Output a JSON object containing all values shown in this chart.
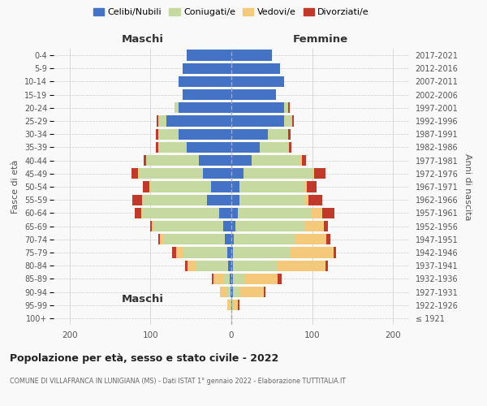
{
  "age_groups": [
    "100+",
    "95-99",
    "90-94",
    "85-89",
    "80-84",
    "75-79",
    "70-74",
    "65-69",
    "60-64",
    "55-59",
    "50-54",
    "45-49",
    "40-44",
    "35-39",
    "30-34",
    "25-29",
    "20-24",
    "15-19",
    "10-14",
    "5-9",
    "0-4"
  ],
  "birth_years": [
    "≤ 1921",
    "1922-1926",
    "1927-1931",
    "1932-1936",
    "1937-1941",
    "1942-1946",
    "1947-1951",
    "1952-1956",
    "1957-1961",
    "1962-1966",
    "1967-1971",
    "1972-1976",
    "1977-1981",
    "1982-1986",
    "1987-1991",
    "1992-1996",
    "1997-2001",
    "2002-2006",
    "2007-2011",
    "2012-2016",
    "2017-2021"
  ],
  "colors": {
    "celibi": "#4472c4",
    "coniugati": "#c5d9a0",
    "vedovi": "#f5c97a",
    "divorziati": "#c0392b"
  },
  "males": {
    "celibi": [
      0,
      0,
      1,
      2,
      4,
      5,
      8,
      10,
      15,
      30,
      25,
      35,
      40,
      55,
      65,
      80,
      65,
      60,
      65,
      60,
      55
    ],
    "coniugati": [
      0,
      2,
      5,
      8,
      40,
      55,
      75,
      85,
      95,
      80,
      75,
      80,
      65,
      35,
      25,
      10,
      5,
      0,
      0,
      0,
      0
    ],
    "vedovi": [
      0,
      3,
      8,
      12,
      10,
      8,
      5,
      3,
      2,
      1,
      1,
      1,
      0,
      0,
      0,
      0,
      0,
      0,
      0,
      0,
      0
    ],
    "divorziati": [
      0,
      0,
      0,
      2,
      3,
      5,
      2,
      2,
      8,
      12,
      8,
      8,
      3,
      3,
      3,
      2,
      0,
      0,
      0,
      0,
      0
    ]
  },
  "females": {
    "nubili": [
      0,
      1,
      2,
      2,
      2,
      2,
      3,
      5,
      8,
      10,
      10,
      15,
      25,
      35,
      45,
      65,
      65,
      55,
      65,
      60,
      50
    ],
    "coniugate": [
      0,
      2,
      8,
      15,
      55,
      70,
      75,
      85,
      90,
      80,
      80,
      85,
      60,
      35,
      25,
      10,
      5,
      0,
      0,
      0,
      0
    ],
    "vedove": [
      1,
      5,
      30,
      40,
      60,
      55,
      40,
      25,
      15,
      5,
      3,
      2,
      2,
      1,
      0,
      0,
      0,
      0,
      0,
      0,
      0
    ],
    "divorziate": [
      0,
      2,
      2,
      5,
      3,
      3,
      5,
      5,
      15,
      18,
      12,
      15,
      5,
      3,
      3,
      2,
      2,
      0,
      0,
      0,
      0
    ]
  },
  "title": "Popolazione per età, sesso e stato civile - 2022",
  "subtitle": "COMUNE DI VILLAFRANCA IN LUNIGIANA (MS) - Dati ISTAT 1° gennaio 2022 - Elaborazione TUTTITALIA.IT",
  "xlabel_left": "Maschi",
  "xlabel_right": "Femmine",
  "ylabel_left": "Fasce di età",
  "ylabel_right": "Anni di nascita",
  "xlim": 220,
  "legend_labels": [
    "Celibi/Nubili",
    "Coniugati/e",
    "Vedovi/e",
    "Divorziati/e"
  ],
  "background_color": "#f9f9f9"
}
